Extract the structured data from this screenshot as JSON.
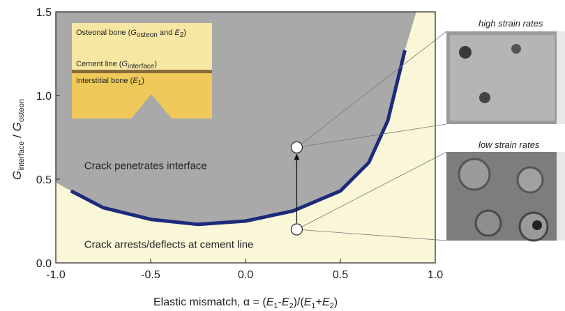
{
  "chart_data": {
    "type": "line",
    "xlabel": [
      "Elastic mismatch, α = (",
      "E",
      "1",
      "-",
      "E",
      "2",
      ")/(",
      "E",
      "1",
      "+",
      "E",
      "2",
      ")"
    ],
    "ylabel": [
      "G",
      "interface",
      " / ",
      "G",
      "osteon"
    ],
    "xlim": [
      -1.0,
      1.0
    ],
    "ylim": [
      0.0,
      1.5
    ],
    "xticks": [
      {
        "value": -1.0,
        "label": "-1.0"
      },
      {
        "value": -0.5,
        "label": "-0.5"
      },
      {
        "value": 0,
        "label": "0.0"
      },
      {
        "value": 0.5,
        "label": "0.5"
      },
      {
        "value": 1.0,
        "label": "1.0"
      }
    ],
    "yticks": [
      {
        "value": 0,
        "label": "0.0"
      },
      {
        "value": 0.5,
        "label": "0.5"
      },
      {
        "value": 1.0,
        "label": "1.0"
      },
      {
        "value": 1.5,
        "label": "1.5"
      }
    ],
    "x": [
      -1.0,
      -0.92,
      -0.75,
      -0.5,
      -0.25,
      0,
      0.25,
      0.5,
      0.65,
      0.75,
      0.84,
      0.9
    ],
    "series": [
      {
        "color": "#a9a9a9",
        "values": [
          0.48,
          0.43,
          0.33,
          0.26,
          0.23,
          0.25,
          0.31,
          0.43,
          0.6,
          0.85,
          1.27,
          1.5
        ]
      },
      {
        "color": "#1c2a7c",
        "values": [
          null,
          0.43,
          0.33,
          0.26,
          0.23,
          0.25,
          0.31,
          0.43,
          0.6,
          0.85,
          1.27,
          null
        ]
      }
    ],
    "points": {
      "x": [
        0.27,
        0.27
      ],
      "values": [
        0.69,
        0.2
      ]
    },
    "annotations": [
      "Crack penetrates interface",
      "Crack arrests/deflects at cement line"
    ],
    "inset": {
      "osteonal": [
        "Osteonal bone (",
        "G",
        "osteon",
        " and ",
        "E",
        "2",
        ")"
      ],
      "cement": [
        "Cement line (",
        "G",
        "interface",
        ")"
      ],
      "interstitial": [
        "Interstitial bone (",
        "E",
        "1",
        ")"
      ]
    },
    "images": [
      "high strain rates",
      "low strain rates"
    ]
  }
}
